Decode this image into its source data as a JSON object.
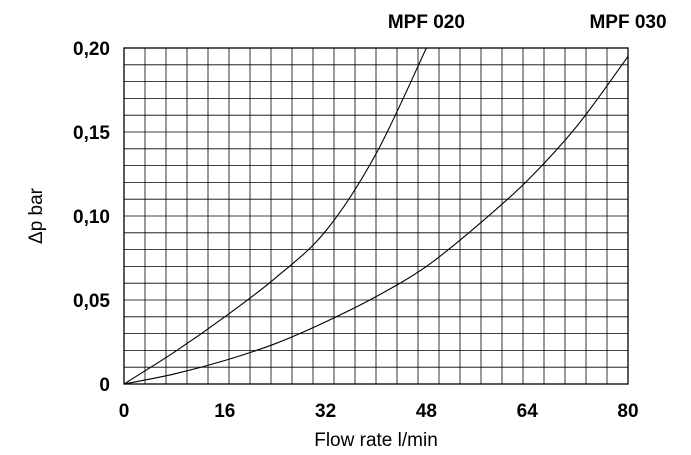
{
  "chart_data": {
    "type": "line",
    "xlabel": "Flow rate l/min",
    "ylabel": "Δp bar",
    "xlim": [
      0,
      80
    ],
    "ylim": [
      0,
      0.2
    ],
    "x_ticks": [
      "0",
      "16",
      "32",
      "48",
      "64",
      "80"
    ],
    "y_ticks": [
      "0",
      "0,05",
      "0,10",
      "0,15",
      "0,20"
    ],
    "grid": true,
    "series": [
      {
        "name": "MPF 020",
        "x": [
          0,
          8,
          16,
          24,
          32,
          40,
          48
        ],
        "y": [
          0,
          0.019,
          0.04,
          0.063,
          0.091,
          0.137,
          0.2
        ]
      },
      {
        "name": "MPF 030",
        "x": [
          0,
          8,
          16,
          24,
          32,
          40,
          48,
          56,
          64,
          72,
          80
        ],
        "y": [
          0,
          0.006,
          0.014,
          0.024,
          0.037,
          0.052,
          0.07,
          0.094,
          0.121,
          0.154,
          0.195
        ]
      }
    ]
  }
}
